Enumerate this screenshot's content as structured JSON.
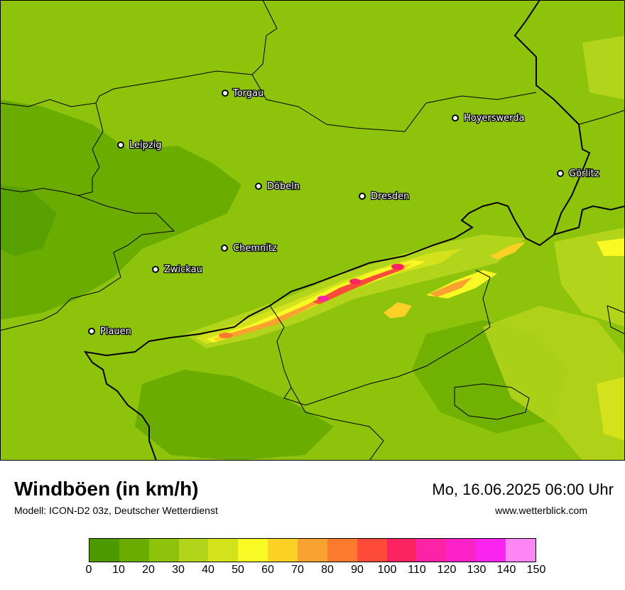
{
  "map": {
    "cities": [
      {
        "name": "Torgau"
      },
      {
        "name": "Hoyerswerda"
      },
      {
        "name": "Leipzig"
      },
      {
        "name": "Görlitz"
      },
      {
        "name": "Döbeln"
      },
      {
        "name": "Dresden"
      },
      {
        "name": "Chemnitz"
      },
      {
        "name": "Zwickau"
      },
      {
        "name": "Plauen"
      }
    ]
  },
  "footer": {
    "title": "Windböen (in km/h)",
    "subtitle": "Modell: ICON-D2 03z, Deutscher Wetterdienst",
    "datetime": "Mo, 16.06.2025 06:00 Uhr",
    "website": "www.wetterblick.com"
  },
  "legend": {
    "ticks": [
      "0",
      "10",
      "20",
      "30",
      "40",
      "50",
      "60",
      "70",
      "80",
      "90",
      "100",
      "110",
      "120",
      "130",
      "140",
      "150"
    ],
    "colors": [
      "#4d9a00",
      "#6aac00",
      "#8ec30c",
      "#b2d41a",
      "#d3e21a",
      "#f8f925",
      "#fbd126",
      "#f9a22f",
      "#fc7a2e",
      "#fd4a39",
      "#fb2360",
      "#fb23a6",
      "#fb23c8",
      "#fb23f0",
      "#fd86f7"
    ]
  }
}
